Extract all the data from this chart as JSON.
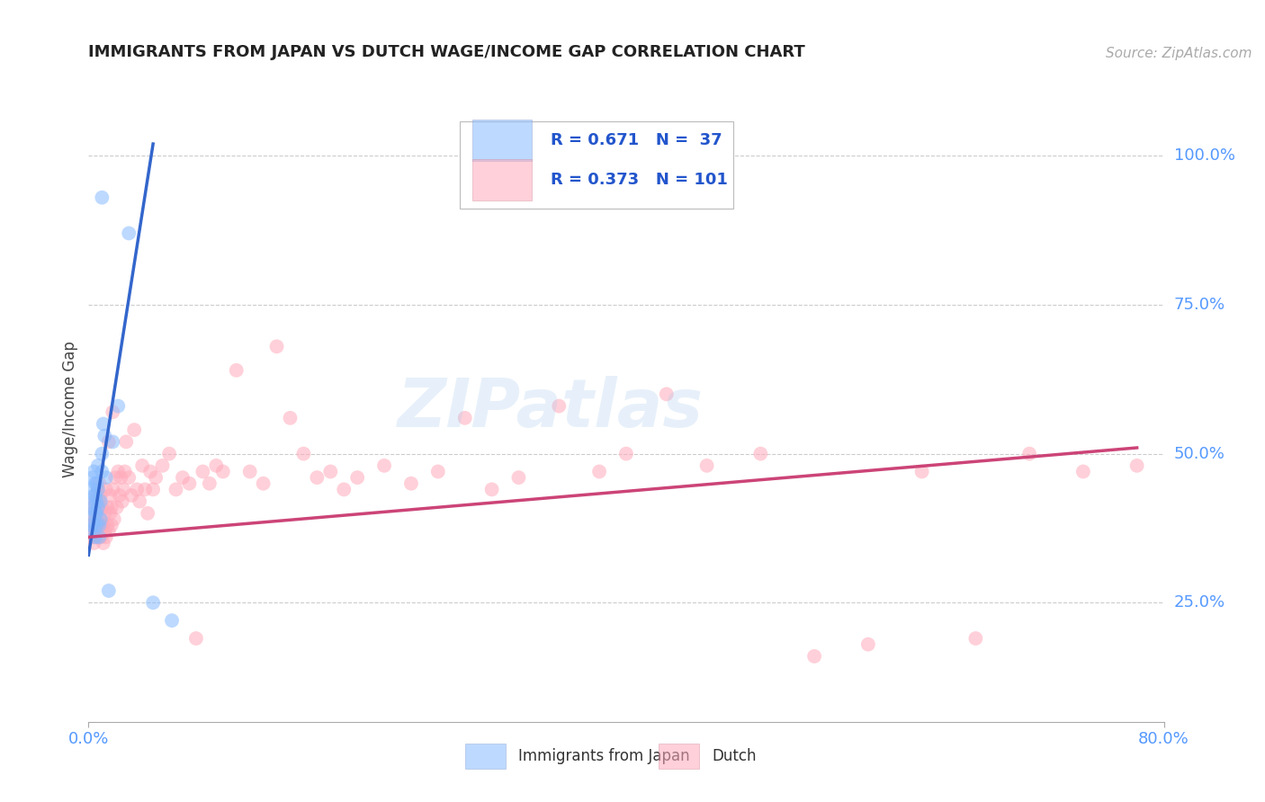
{
  "title": "IMMIGRANTS FROM JAPAN VS DUTCH WAGE/INCOME GAP CORRELATION CHART",
  "source": "Source: ZipAtlas.com",
  "ylabel": "Wage/Income Gap",
  "legend1_R": "0.671",
  "legend1_N": "37",
  "legend2_R": "0.373",
  "legend2_N": "101",
  "blue_color": "#88bbff",
  "pink_color": "#ffaabb",
  "blue_line_color": "#3366cc",
  "pink_line_color": "#cc4477",
  "watermark": "ZIPatlas",
  "xlim": [
    0.0,
    0.8
  ],
  "ylim": [
    0.05,
    1.1
  ],
  "ytick_vals": [
    0.25,
    0.5,
    0.75,
    1.0
  ],
  "ytick_labels": [
    "25.0%",
    "50.0%",
    "75.0%",
    "100.0%"
  ],
  "japan_x": [
    0.001,
    0.002,
    0.002,
    0.003,
    0.003,
    0.003,
    0.004,
    0.004,
    0.004,
    0.004,
    0.005,
    0.005,
    0.005,
    0.005,
    0.006,
    0.006,
    0.006,
    0.006,
    0.007,
    0.007,
    0.007,
    0.008,
    0.008,
    0.009,
    0.009,
    0.01,
    0.01,
    0.011,
    0.012,
    0.013,
    0.015,
    0.018,
    0.022,
    0.03,
    0.048,
    0.062,
    0.01
  ],
  "japan_y": [
    0.37,
    0.4,
    0.38,
    0.41,
    0.44,
    0.46,
    0.38,
    0.43,
    0.47,
    0.42,
    0.36,
    0.4,
    0.45,
    0.43,
    0.38,
    0.42,
    0.45,
    0.4,
    0.41,
    0.44,
    0.48,
    0.36,
    0.38,
    0.39,
    0.42,
    0.5,
    0.47,
    0.55,
    0.53,
    0.46,
    0.27,
    0.52,
    0.58,
    0.87,
    0.25,
    0.22,
    0.93
  ],
  "dutch_x": [
    0.001,
    0.002,
    0.003,
    0.003,
    0.004,
    0.004,
    0.004,
    0.005,
    0.005,
    0.005,
    0.006,
    0.006,
    0.006,
    0.007,
    0.007,
    0.007,
    0.007,
    0.008,
    0.008,
    0.008,
    0.009,
    0.009,
    0.009,
    0.01,
    0.01,
    0.011,
    0.011,
    0.012,
    0.012,
    0.013,
    0.013,
    0.014,
    0.014,
    0.015,
    0.015,
    0.016,
    0.016,
    0.017,
    0.017,
    0.018,
    0.018,
    0.019,
    0.02,
    0.021,
    0.022,
    0.023,
    0.024,
    0.025,
    0.026,
    0.027,
    0.028,
    0.03,
    0.032,
    0.034,
    0.036,
    0.038,
    0.04,
    0.042,
    0.044,
    0.046,
    0.048,
    0.05,
    0.055,
    0.06,
    0.065,
    0.07,
    0.075,
    0.08,
    0.085,
    0.09,
    0.095,
    0.1,
    0.11,
    0.12,
    0.13,
    0.14,
    0.15,
    0.16,
    0.17,
    0.18,
    0.19,
    0.2,
    0.22,
    0.24,
    0.26,
    0.28,
    0.3,
    0.32,
    0.35,
    0.38,
    0.4,
    0.43,
    0.46,
    0.5,
    0.54,
    0.58,
    0.62,
    0.66,
    0.7,
    0.74,
    0.78
  ],
  "dutch_y": [
    0.38,
    0.36,
    0.37,
    0.4,
    0.35,
    0.38,
    0.41,
    0.36,
    0.39,
    0.42,
    0.37,
    0.4,
    0.43,
    0.38,
    0.41,
    0.44,
    0.36,
    0.42,
    0.45,
    0.37,
    0.36,
    0.39,
    0.43,
    0.38,
    0.41,
    0.35,
    0.38,
    0.37,
    0.4,
    0.36,
    0.44,
    0.38,
    0.41,
    0.37,
    0.52,
    0.4,
    0.43,
    0.38,
    0.41,
    0.44,
    0.57,
    0.39,
    0.46,
    0.41,
    0.47,
    0.43,
    0.46,
    0.42,
    0.44,
    0.47,
    0.52,
    0.46,
    0.43,
    0.54,
    0.44,
    0.42,
    0.48,
    0.44,
    0.4,
    0.47,
    0.44,
    0.46,
    0.48,
    0.5,
    0.44,
    0.46,
    0.45,
    0.19,
    0.47,
    0.45,
    0.48,
    0.47,
    0.64,
    0.47,
    0.45,
    0.68,
    0.56,
    0.5,
    0.46,
    0.47,
    0.44,
    0.46,
    0.48,
    0.45,
    0.47,
    0.56,
    0.44,
    0.46,
    0.58,
    0.47,
    0.5,
    0.6,
    0.48,
    0.5,
    0.16,
    0.18,
    0.47,
    0.19,
    0.5,
    0.47,
    0.48
  ],
  "blue_line_x0": 0.0,
  "blue_line_y0": 0.33,
  "blue_line_x1": 0.048,
  "blue_line_y1": 1.02,
  "pink_line_x0": 0.0,
  "pink_line_y0": 0.36,
  "pink_line_x1": 0.78,
  "pink_line_y1": 0.51
}
